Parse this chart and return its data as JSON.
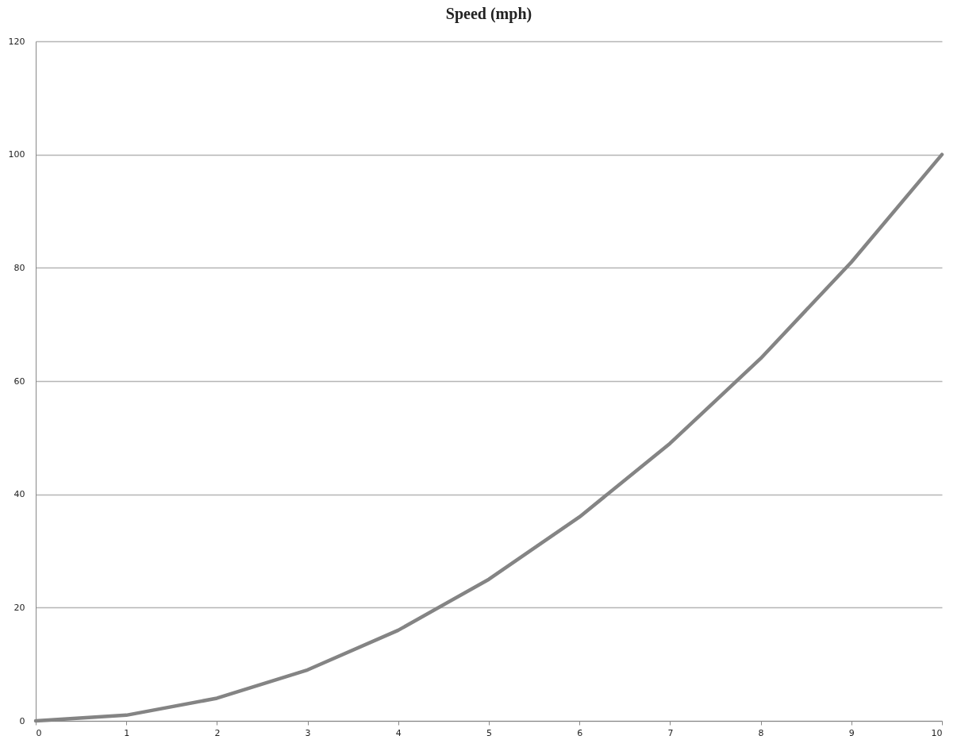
{
  "chart_data": {
    "type": "line",
    "title": "Speed (mph)",
    "x": [
      0,
      1,
      2,
      3,
      4,
      5,
      6,
      7,
      8,
      9,
      10
    ],
    "series": [
      {
        "color": "#848484",
        "values": [
          0,
          1,
          4,
          9,
          16,
          25,
          36,
          49,
          64,
          81,
          100
        ]
      }
    ],
    "xlim": [
      0,
      10
    ],
    "xticks": [
      0,
      1,
      2,
      3,
      4,
      5,
      6,
      7,
      8,
      9,
      10
    ],
    "ylim": [
      0,
      120
    ],
    "yticks": [
      0,
      20,
      40,
      60,
      80,
      100,
      120
    ],
    "grid": "y",
    "marker": "none",
    "line_style": "solid"
  }
}
